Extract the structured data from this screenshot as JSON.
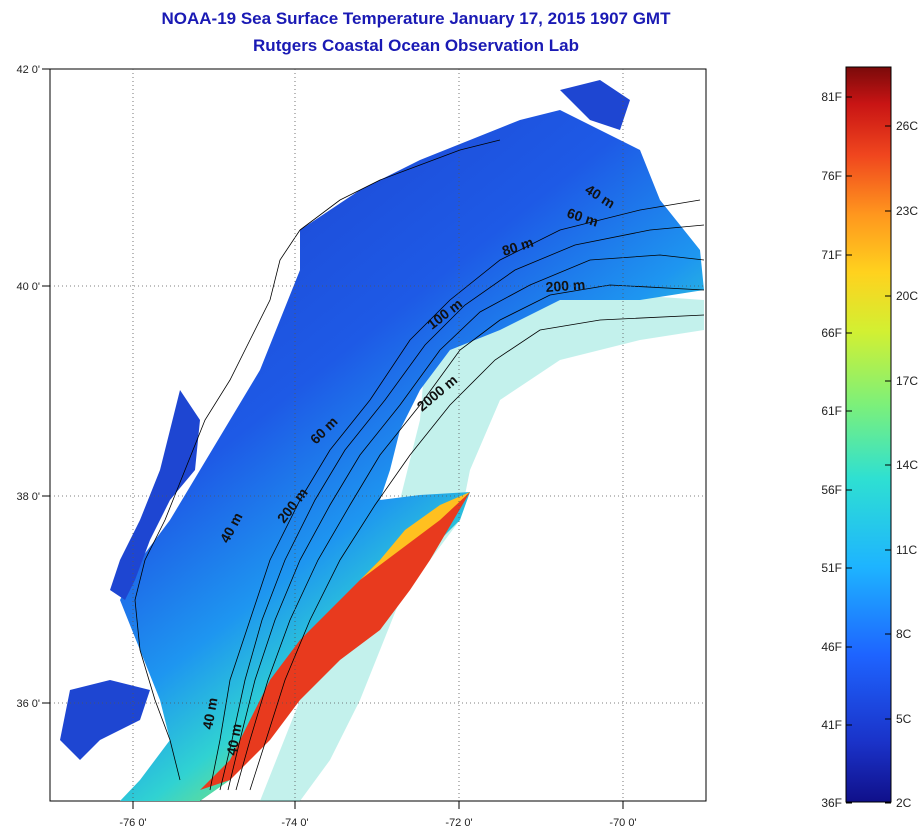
{
  "title": "NOAA-19 Sea Surface Temperature January 17, 2015 1907 GMT",
  "subtitle": "Rutgers Coastal Ocean Observation Lab",
  "axes": {
    "lat_labels": [
      "42 0'",
      "40 0'",
      "38 0'",
      "36 0'"
    ],
    "lon_labels": [
      "-76 0'",
      "-74 0'",
      "-72 0'",
      "-70 0'"
    ]
  },
  "contours": {
    "ne_40": "40 m",
    "ne_60": "60 m",
    "ne_80": "80 m",
    "ne_200": "200 m",
    "mid_100": "100 m",
    "mid_2000": "2000 m",
    "mid_60": "60 m",
    "mid_200": "200 m",
    "sw_40a": "40 m",
    "sw_40b": "40 m",
    "sw_40c": "40 m"
  },
  "colorbar": {
    "fahrenheit": [
      "81F",
      "76F",
      "71F",
      "66F",
      "61F",
      "56F",
      "51F",
      "46F",
      "41F",
      "36F"
    ],
    "celsius": [
      "26C",
      "23C",
      "20C",
      "17C",
      "14C",
      "11C",
      "8C",
      "5C",
      "2C"
    ]
  },
  "colors": {
    "title": "#1a1ab4",
    "cold": "#1e3cc8",
    "warm": "#e6281e"
  }
}
